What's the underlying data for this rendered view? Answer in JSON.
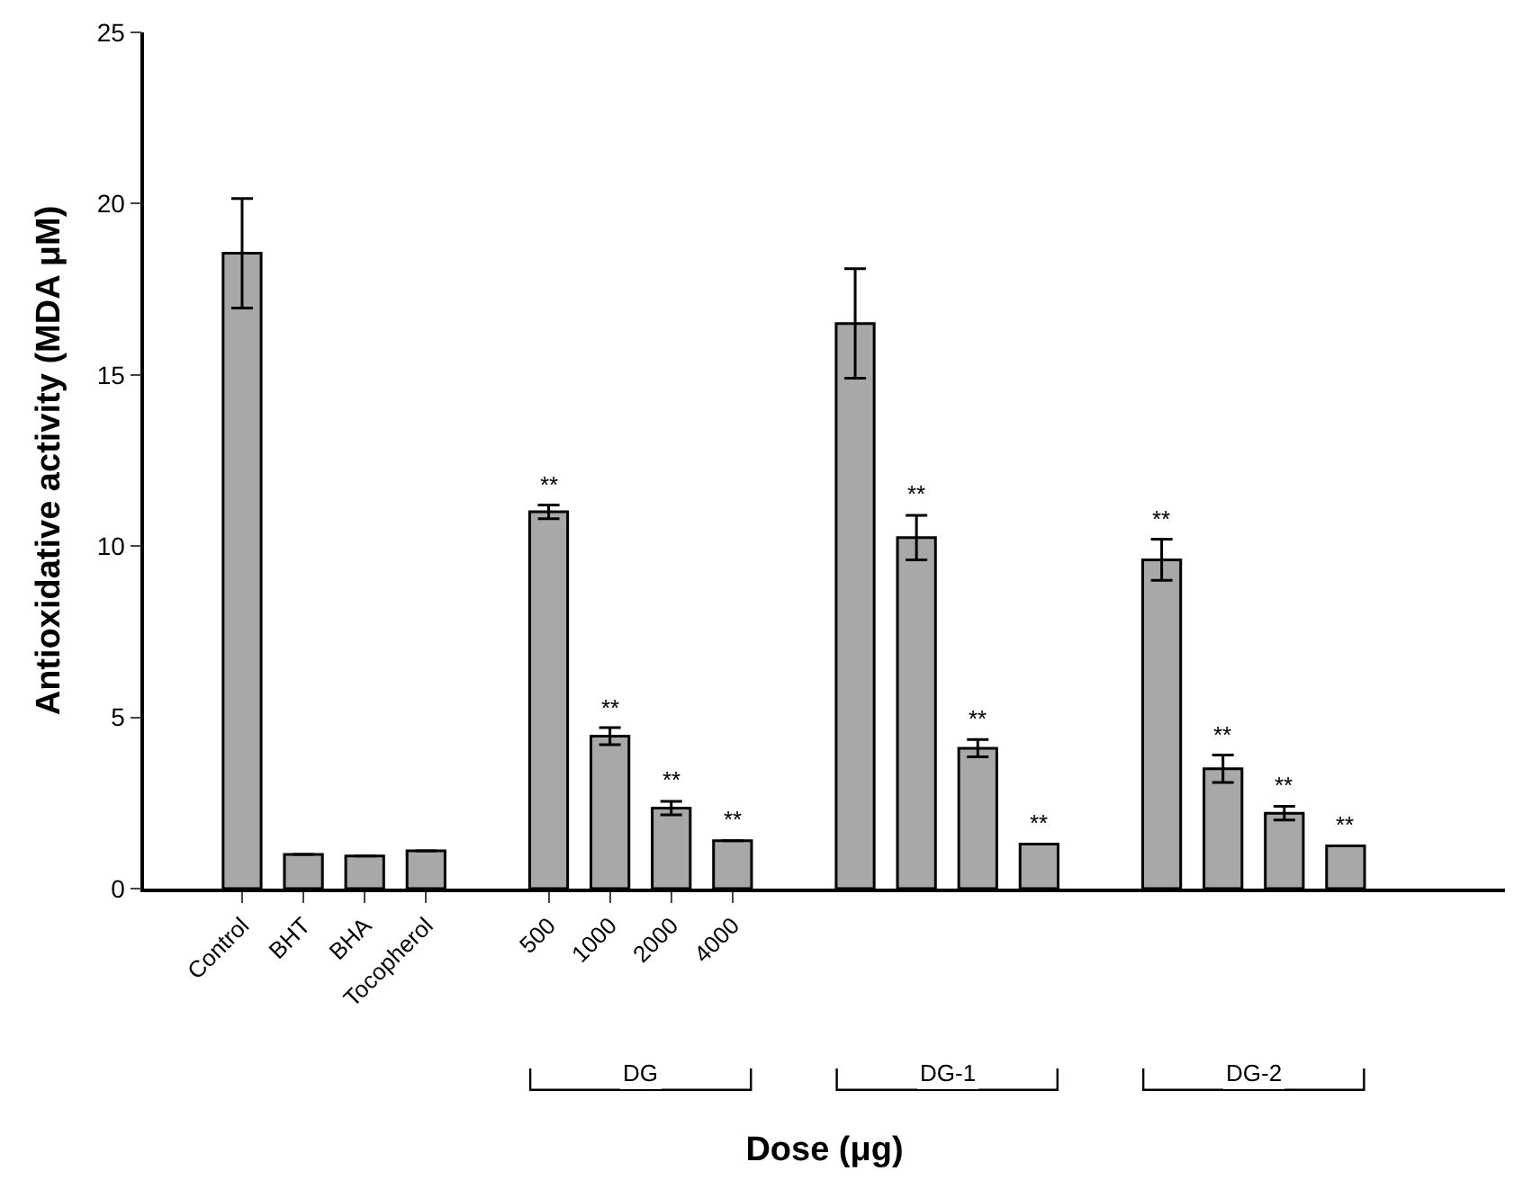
{
  "chart_data": {
    "type": "bar",
    "xlabel": "Dose (μg)",
    "ylabel": "Antioxidative activity (MDA μM)",
    "categories": [
      null,
      "Control",
      "BHT",
      "BHA",
      "Tocopherol",
      null,
      "500",
      "1000",
      "2000",
      "4000",
      null,
      null,
      null,
      null,
      null,
      null,
      null,
      null,
      null,
      null,
      null,
      null
    ],
    "values": [
      null,
      18.55,
      1.0,
      0.95,
      1.1,
      null,
      11.0,
      4.45,
      2.35,
      1.4,
      null,
      16.5,
      10.25,
      4.1,
      1.3,
      null,
      9.6,
      3.5,
      2.2,
      1.25,
      null,
      null
    ],
    "errors": [
      null,
      1.6,
      null,
      null,
      null,
      null,
      0.2,
      0.25,
      0.2,
      null,
      null,
      1.6,
      0.65,
      0.25,
      null,
      null,
      0.6,
      0.4,
      0.2,
      null,
      null,
      null
    ],
    "value_labels": [
      null,
      null,
      null,
      null,
      null,
      null,
      "**",
      "**",
      "**",
      "**",
      null,
      null,
      "**",
      "**",
      "**",
      null,
      "**",
      "**",
      "**",
      "**",
      null,
      null
    ],
    "color": "#a8a8a8",
    "ylim": [
      0,
      25
    ],
    "yticks": [
      0,
      5,
      10,
      15,
      20,
      25
    ],
    "annotations": [
      "DG",
      "DG-1",
      "DG-2"
    ]
  }
}
